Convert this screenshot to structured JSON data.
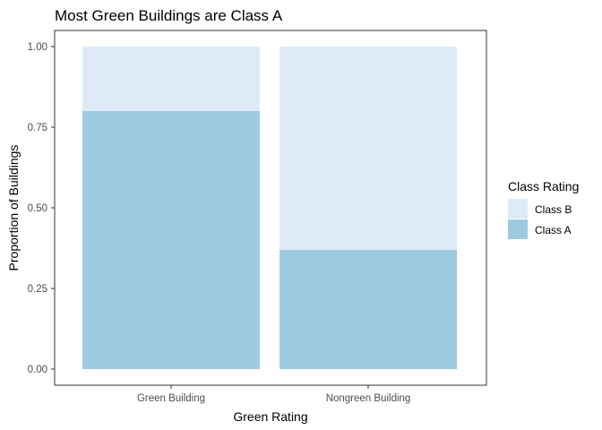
{
  "chart_data": {
    "type": "bar",
    "stacked": true,
    "title": "Most Green Buildings are Class A",
    "xlabel": "Green Rating",
    "ylabel": "Proportion of Buildings",
    "categories": [
      "Green Building",
      "Nongreen Building"
    ],
    "series": [
      {
        "name": "Class A",
        "values": [
          0.8,
          0.37
        ],
        "color": "#9ecae1"
      },
      {
        "name": "Class B",
        "values": [
          0.2,
          0.63
        ],
        "color": "#deebf7"
      }
    ],
    "ylim": [
      0,
      1
    ],
    "yticks": [
      0,
      0.25,
      0.5,
      0.75,
      1
    ],
    "ytick_labels": [
      "0.00",
      "0.25",
      "0.50",
      "0.75",
      "1.00"
    ],
    "grid": false,
    "legend": {
      "title": "Class Rating",
      "position": "right",
      "entries": [
        {
          "label": "Class B",
          "color": "#deebf7"
        },
        {
          "label": "Class A",
          "color": "#9ecae1"
        }
      ]
    }
  }
}
